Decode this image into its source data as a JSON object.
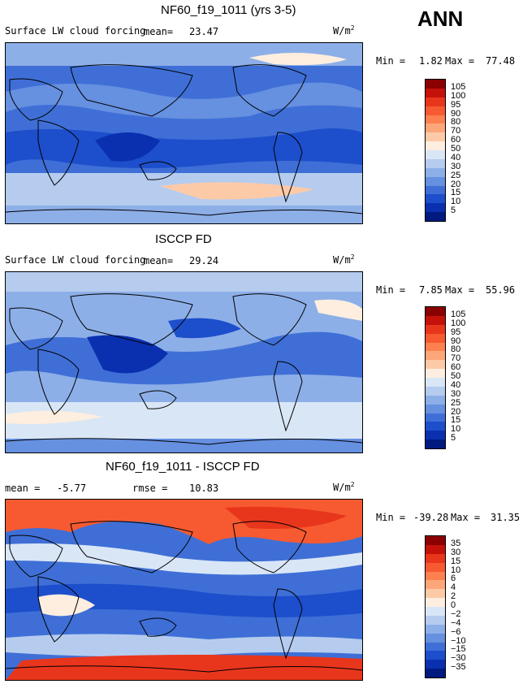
{
  "season": "ANN",
  "chart_data": [
    {
      "type": "heatmap",
      "title": "NF60_f19_1011 (yrs 3-5)",
      "variable": "Surface LW cloud forcing",
      "mean_label": "mean=",
      "mean": "23.47",
      "units": "W/m",
      "units_sup": "2",
      "min_label": "Min =",
      "min": "1.82",
      "max_label": "Max =",
      "max": "77.48",
      "levels": [
        "105",
        "100",
        "95",
        "90",
        "80",
        "70",
        "60",
        "50",
        "40",
        "30",
        "25",
        "20",
        "15",
        "10",
        "5"
      ],
      "colors": [
        "#8b0000",
        "#c4120a",
        "#e8361c",
        "#f75a30",
        "#fc8050",
        "#fda67a",
        "#fdcaa8",
        "#fdeedf",
        "#d9e6f6",
        "#b5ccef",
        "#8dafe8",
        "#6690e0",
        "#3f6fd6",
        "#1d4fcc",
        "#0a30b0",
        "#001a80"
      ]
    },
    {
      "type": "heatmap",
      "title": "ISCCP FD",
      "variable": "Surface LW cloud forcing",
      "mean_label": "mean=",
      "mean": "29.24",
      "units": "W/m",
      "units_sup": "2",
      "min_label": "Min =",
      "min": "7.85",
      "max_label": "Max =",
      "max": "55.96",
      "levels": [
        "105",
        "100",
        "95",
        "90",
        "80",
        "70",
        "60",
        "50",
        "40",
        "30",
        "25",
        "20",
        "15",
        "10",
        "5"
      ],
      "colors": [
        "#8b0000",
        "#c4120a",
        "#e8361c",
        "#f75a30",
        "#fc8050",
        "#fda67a",
        "#fdcaa8",
        "#fdeedf",
        "#d9e6f6",
        "#b5ccef",
        "#8dafe8",
        "#6690e0",
        "#3f6fd6",
        "#1d4fcc",
        "#0a30b0",
        "#001a80"
      ]
    },
    {
      "type": "heatmap",
      "title": "NF60_f19_1011 - ISCCP FD",
      "mean_label": "mean =",
      "mean": "-5.77",
      "rmse_label": "rmse =",
      "rmse": "10.83",
      "units": "W/m",
      "units_sup": "2",
      "min_label": "Min =",
      "min": "-39.28",
      "max_label": "Max =",
      "max": "31.35",
      "levels": [
        "35",
        "30",
        "15",
        "10",
        "6",
        "4",
        "2",
        "0",
        "−2",
        "−4",
        "−6",
        "−10",
        "−15",
        "−30",
        "−35"
      ],
      "colors": [
        "#8b0000",
        "#c4120a",
        "#e8361c",
        "#f75a30",
        "#fc8050",
        "#fda67a",
        "#fdcaa8",
        "#fdeedf",
        "#d9e6f6",
        "#b5ccef",
        "#8dafe8",
        "#6690e0",
        "#3f6fd6",
        "#1d4fcc",
        "#0a30b0",
        "#001a80"
      ]
    }
  ]
}
